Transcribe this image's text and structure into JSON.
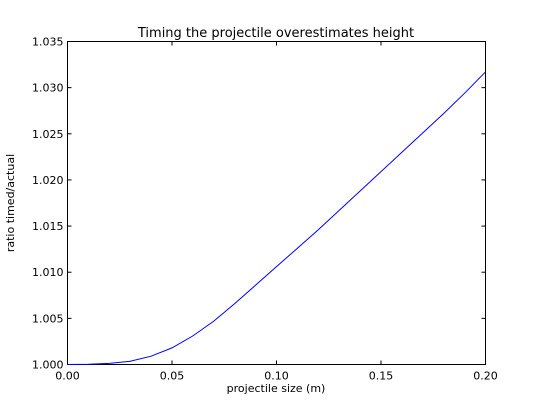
{
  "chart_data": {
    "type": "line",
    "title": "Timing the projectile overestimates height",
    "xlabel": "projectile size (m)",
    "ylabel": "ratio timed/actual",
    "xlim": [
      0.0,
      0.2
    ],
    "ylim": [
      1.0,
      1.035
    ],
    "x_ticks": [
      "0.00",
      "0.05",
      "0.10",
      "0.15",
      "0.20"
    ],
    "y_ticks": [
      "1.000",
      "1.005",
      "1.010",
      "1.015",
      "1.020",
      "1.025",
      "1.030",
      "1.035"
    ],
    "grid": false,
    "series_color": "#0000ff",
    "series": [
      {
        "x": [
          0.0,
          0.01,
          0.02,
          0.03,
          0.04,
          0.05,
          0.06,
          0.07,
          0.08,
          0.09,
          0.1,
          0.11,
          0.12,
          0.13,
          0.14,
          0.15,
          0.16,
          0.17,
          0.18,
          0.19,
          0.2
        ],
        "values": [
          1.0,
          1.00003,
          1.00012,
          1.00035,
          1.0009,
          1.0018,
          1.0031,
          1.0047,
          1.0066,
          1.0086,
          1.0106,
          1.0126,
          1.0146,
          1.0167,
          1.0188,
          1.0209,
          1.023,
          1.0251,
          1.0272,
          1.0294,
          1.0317
        ]
      }
    ]
  }
}
